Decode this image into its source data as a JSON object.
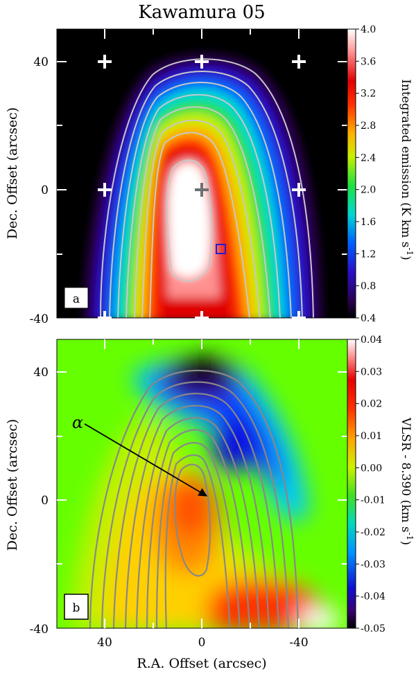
{
  "title": "Kawamura 05",
  "panel_a": {
    "tag": "a",
    "ylabel": "Dec. Offset (arcsec)",
    "colorbar_label": "Integrated emission (K km s",
    "colorbar_sup": "-1",
    "colorbar_close": ")",
    "colorbar_ticks": [
      "0.4",
      "0.8",
      "1.2",
      "1.6",
      "2.0",
      "2.4",
      "2.8",
      "3.2",
      "3.6",
      "4.0"
    ],
    "yticks": [
      "40",
      "0",
      "-40"
    ]
  },
  "panel_b": {
    "tag": "b",
    "ylabel": "Dec. Offset (arcsec)",
    "xlabel": "R.A. Offset (arcsec)",
    "colorbar_label": "VLSR - 8.390 (km s",
    "colorbar_sup": "-1",
    "colorbar_close": ")",
    "colorbar_ticks": [
      "0.04",
      "0.03",
      "0.02",
      "0.01",
      "0.00",
      "-0.01",
      "-0.02",
      "-0.03",
      "-0.04",
      "-0.05"
    ],
    "yticks": [
      "40",
      "0",
      "-40"
    ],
    "xticks": [
      "40",
      "0",
      "-40"
    ],
    "annotation": "α"
  },
  "chart_data": [
    {
      "type": "heatmap",
      "panel": "a",
      "ylabel": "Dec. Offset (arcsec)",
      "colorbar_label": "Integrated emission (K km s-1)",
      "xlim": [
        60,
        -60
      ],
      "ylim": [
        -40,
        50
      ],
      "clim": [
        0.4,
        4.0
      ],
      "peak_position": [
        2,
        -5
      ],
      "peak_value": 4.0,
      "beam_marker": [
        -7,
        -19
      ],
      "cross_markers": [
        [
          30,
          40
        ],
        [
          0,
          40
        ],
        [
          -30,
          40
        ],
        [
          30,
          0
        ],
        [
          0,
          0
        ],
        [
          -30,
          0
        ],
        [
          30,
          -40
        ],
        [
          0,
          -40
        ],
        [
          -30,
          -40
        ]
      ],
      "contour_levels": 8
    },
    {
      "type": "heatmap",
      "panel": "b",
      "ylabel": "Dec. Offset (arcsec)",
      "xlabel": "R.A. Offset (arcsec)",
      "colorbar_label": "VLSR - 8.390 (km s-1)",
      "xlim": [
        60,
        -60
      ],
      "ylim": [
        -40,
        50
      ],
      "clim": [
        -0.05,
        0.04
      ],
      "features": [
        {
          "x": 0,
          "y": 42,
          "value": -0.05
        },
        {
          "x": -20,
          "y": 15,
          "value": -0.04
        },
        {
          "x": 5,
          "y": -8,
          "value": 0.02
        },
        {
          "x": -40,
          "y": -35,
          "value": 0.04
        }
      ],
      "annotation_arrow": {
        "label": "α",
        "from": [
          30,
          35
        ],
        "to": [
          -2,
          3
        ]
      }
    }
  ]
}
